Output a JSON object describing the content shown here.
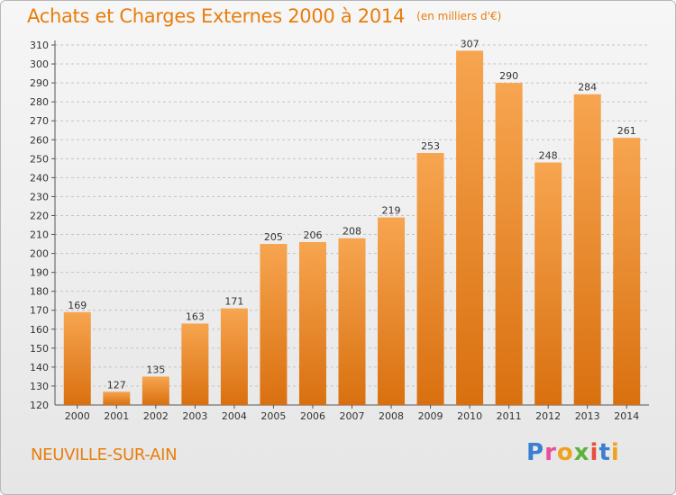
{
  "header": {
    "title": "Achats et Charges Externes 2000 à 2014",
    "unit": "(en milliers d'€)"
  },
  "footer": {
    "location": "NEUVILLE-SUR-AIN",
    "brand_letters": [
      "P",
      "r",
      "o",
      "x",
      "i",
      "t",
      "i"
    ]
  },
  "colors": {
    "bar_light": "#f7a550",
    "bar_dark": "#d9700f",
    "title": "#e87d0c",
    "grid": "#c4c4c4"
  },
  "chart_data": {
    "type": "bar",
    "title": "Achats et Charges Externes 2000 à 2014",
    "subtitle": "(en milliers d'€)",
    "xlabel": "",
    "ylabel": "",
    "categories": [
      "2000",
      "2001",
      "2002",
      "2003",
      "2004",
      "2005",
      "2006",
      "2007",
      "2008",
      "2009",
      "2010",
      "2011",
      "2012",
      "2013",
      "2014"
    ],
    "values": [
      169,
      127,
      135,
      163,
      171,
      205,
      206,
      208,
      219,
      253,
      307,
      290,
      248,
      284,
      261
    ],
    "ylim": [
      120,
      310
    ],
    "yticks": [
      120,
      130,
      140,
      150,
      160,
      170,
      180,
      190,
      200,
      210,
      220,
      230,
      240,
      250,
      260,
      270,
      280,
      290,
      300,
      310
    ],
    "grid": true,
    "legend": "none"
  }
}
